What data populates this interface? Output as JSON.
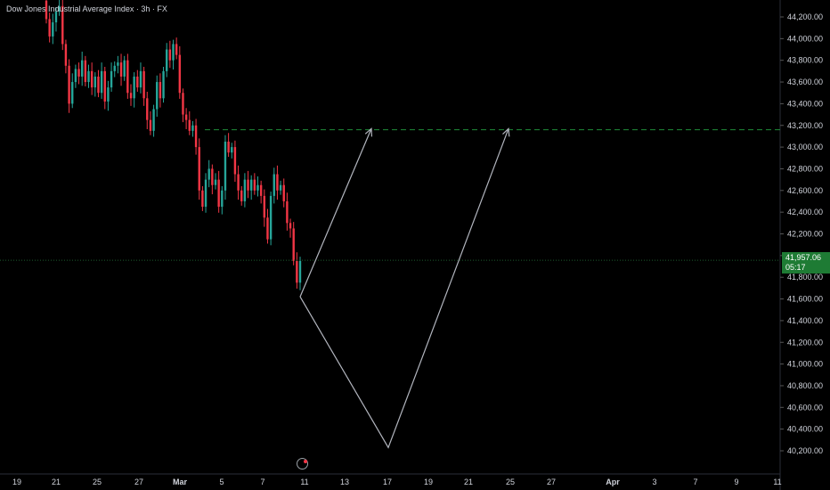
{
  "header": {
    "title": "Dow Jones Industrial Average Index · 3h · FX"
  },
  "colors": {
    "background": "#000000",
    "up": "#26a69a",
    "down": "#f23645",
    "target_line": "#1f8b3a",
    "projection": "#b2b5be",
    "badge": "#1e7b34"
  },
  "price_axis": {
    "labels": [
      "44,200.00",
      "44,000.00",
      "43,800.00",
      "43,600.00",
      "43,400.00",
      "43,200.00",
      "43,000.00",
      "42,800.00",
      "42,600.00",
      "42,400.00",
      "42,200.00",
      "42,000.00",
      "41,800.00",
      "41,600.00",
      "41,400.00",
      "41,200.00",
      "41,000.00",
      "40,800.00",
      "40,600.00",
      "40,400.00",
      "40,200.00"
    ],
    "values": [
      44200,
      44000,
      43800,
      43600,
      43400,
      43200,
      43000,
      42800,
      42600,
      42400,
      42200,
      42000,
      41800,
      41600,
      41400,
      41200,
      41000,
      40800,
      40600,
      40400,
      40200
    ]
  },
  "time_axis": {
    "labels": [
      "19",
      "21",
      "25",
      "27",
      "Mar",
      "5",
      "7",
      "11",
      "13",
      "17",
      "19",
      "21",
      "25",
      "27",
      "Apr",
      "3",
      "7",
      "9",
      "11"
    ],
    "bold": [
      "Mar",
      "Apr"
    ]
  },
  "current_price": {
    "value": "41,957.06",
    "countdown": "05:17"
  },
  "target_level": 43160,
  "projection": {
    "type": "price-path",
    "points_price": [
      41620,
      40230,
      43170
    ],
    "short_path_price": [
      41620,
      43170
    ]
  },
  "chart_data": {
    "type": "candlestick",
    "symbol": "Dow Jones Industrial Average Index",
    "interval": "3h",
    "ylim": [
      40100,
      44300
    ],
    "series": [
      {
        "o": 44350,
        "c": 44180
      },
      {
        "o": 44180,
        "c": 44020
      },
      {
        "o": 44020,
        "c": 44150
      },
      {
        "o": 44150,
        "c": 44250
      },
      {
        "o": 44250,
        "c": 44300
      },
      {
        "o": 44300,
        "c": 43950
      },
      {
        "o": 43950,
        "c": 43750
      },
      {
        "o": 43750,
        "c": 43400
      },
      {
        "o": 43400,
        "c": 43600
      },
      {
        "o": 43600,
        "c": 43720
      },
      {
        "o": 43720,
        "c": 43650
      },
      {
        "o": 43650,
        "c": 43800
      },
      {
        "o": 43800,
        "c": 43600
      },
      {
        "o": 43600,
        "c": 43700
      },
      {
        "o": 43700,
        "c": 43550
      },
      {
        "o": 43550,
        "c": 43650
      },
      {
        "o": 43650,
        "c": 43500
      },
      {
        "o": 43500,
        "c": 43700
      },
      {
        "o": 43700,
        "c": 43420
      },
      {
        "o": 43420,
        "c": 43550
      },
      {
        "o": 43550,
        "c": 43700
      },
      {
        "o": 43700,
        "c": 43750
      },
      {
        "o": 43750,
        "c": 43780
      },
      {
        "o": 43780,
        "c": 43650
      },
      {
        "o": 43650,
        "c": 43800
      },
      {
        "o": 43800,
        "c": 43500
      },
      {
        "o": 43500,
        "c": 43450
      },
      {
        "o": 43450,
        "c": 43650
      },
      {
        "o": 43650,
        "c": 43550
      },
      {
        "o": 43550,
        "c": 43700
      },
      {
        "o": 43700,
        "c": 43450
      },
      {
        "o": 43450,
        "c": 43250
      },
      {
        "o": 43250,
        "c": 43150
      },
      {
        "o": 43150,
        "c": 43350
      },
      {
        "o": 43350,
        "c": 43600
      },
      {
        "o": 43600,
        "c": 43450
      },
      {
        "o": 43450,
        "c": 43700
      },
      {
        "o": 43700,
        "c": 43900
      },
      {
        "o": 43900,
        "c": 43800
      },
      {
        "o": 43800,
        "c": 43950
      },
      {
        "o": 43950,
        "c": 43850
      },
      {
        "o": 43850,
        "c": 43500
      },
      {
        "o": 43500,
        "c": 43300
      },
      {
        "o": 43300,
        "c": 43250
      },
      {
        "o": 43250,
        "c": 43150
      },
      {
        "o": 43150,
        "c": 43200
      },
      {
        "o": 43200,
        "c": 43000
      },
      {
        "o": 43000,
        "c": 42600
      },
      {
        "o": 42600,
        "c": 42450
      },
      {
        "o": 42450,
        "c": 42700
      },
      {
        "o": 42700,
        "c": 42800
      },
      {
        "o": 42800,
        "c": 42650
      },
      {
        "o": 42650,
        "c": 42700
      },
      {
        "o": 42700,
        "c": 42450
      },
      {
        "o": 42450,
        "c": 42600
      },
      {
        "o": 42600,
        "c": 43050
      },
      {
        "o": 43050,
        "c": 42950
      },
      {
        "o": 42950,
        "c": 43000
      },
      {
        "o": 43000,
        "c": 42750
      },
      {
        "o": 42750,
        "c": 42600
      },
      {
        "o": 42600,
        "c": 42500
      },
      {
        "o": 42500,
        "c": 42700
      },
      {
        "o": 42700,
        "c": 42600
      },
      {
        "o": 42600,
        "c": 42700
      },
      {
        "o": 42700,
        "c": 42600
      },
      {
        "o": 42600,
        "c": 42650
      },
      {
        "o": 42650,
        "c": 42550
      },
      {
        "o": 42550,
        "c": 42350
      },
      {
        "o": 42350,
        "c": 42150
      },
      {
        "o": 42150,
        "c": 42550
      },
      {
        "o": 42550,
        "c": 42750
      },
      {
        "o": 42750,
        "c": 42600
      },
      {
        "o": 42600,
        "c": 42650
      },
      {
        "o": 42650,
        "c": 42500
      },
      {
        "o": 42500,
        "c": 42300
      },
      {
        "o": 42300,
        "c": 42250
      },
      {
        "o": 42250,
        "c": 41950
      },
      {
        "o": 41950,
        "c": 41750
      },
      {
        "o": 41750,
        "c": 41950
      }
    ]
  }
}
